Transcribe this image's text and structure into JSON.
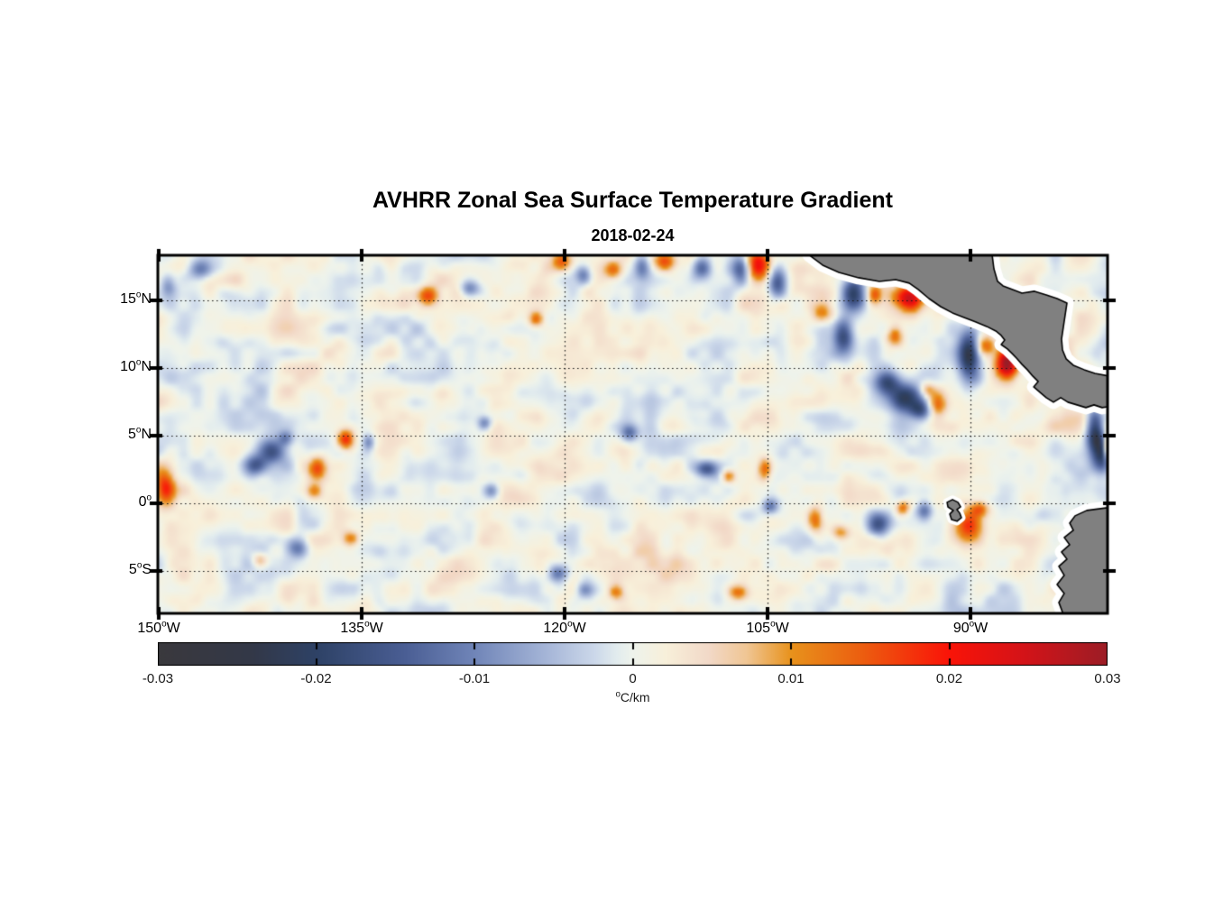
{
  "chart_data": {
    "type": "heatmap",
    "title": "AVHRR Zonal Sea Surface Temperature Gradient",
    "subtitle": "2018-02-24",
    "units": {
      "sup": "o",
      "main": "C/km"
    },
    "extent": {
      "lon_min": -150.07,
      "lon_max": -79.87,
      "lat_min": -8.14,
      "lat_max": 18.33
    },
    "lat_ticks": [
      {
        "value": "15",
        "sup": "o",
        "suffix": "N",
        "lat": 15
      },
      {
        "value": "10",
        "sup": "o",
        "suffix": "N",
        "lat": 10
      },
      {
        "value": "5",
        "sup": "o",
        "suffix": "N",
        "lat": 5
      },
      {
        "value": "0",
        "sup": "o",
        "suffix": "",
        "lat": 0
      },
      {
        "value": "5",
        "sup": "o",
        "suffix": "S",
        "lat": -5
      }
    ],
    "lon_ticks": [
      {
        "value": "150",
        "sup": "o",
        "suffix": "W",
        "lon": -150
      },
      {
        "value": "135",
        "sup": "o",
        "suffix": "W",
        "lon": -135
      },
      {
        "value": "120",
        "sup": "o",
        "suffix": "W",
        "lon": -120
      },
      {
        "value": "105",
        "sup": "o",
        "suffix": "W",
        "lon": -105
      },
      {
        "value": "90",
        "sup": "o",
        "suffix": "W",
        "lon": -90
      }
    ],
    "grid": {
      "style": "dotted",
      "lats": [
        15,
        10,
        5,
        0,
        -5
      ],
      "lons": [
        -135,
        -120,
        -105,
        -90
      ],
      "color": "#1a1a1a"
    },
    "colorbar": {
      "orientation": "horizontal",
      "min": -0.03,
      "max": 0.03,
      "tick_labels": [
        "-0.03",
        "-0.02",
        "-0.01",
        "0",
        "0.01",
        "0.02",
        "0.03"
      ],
      "tick_values": [
        -0.03,
        -0.02,
        -0.01,
        0,
        0.01,
        0.02,
        0.03
      ],
      "inner_tick_values": [
        -0.02,
        -0.01,
        0,
        0.01,
        0.02
      ],
      "stops": [
        {
          "p": 0.0,
          "c": "#3a393d"
        },
        {
          "p": 0.1,
          "c": "#333848"
        },
        {
          "p": 0.167,
          "c": "#2e4266"
        },
        {
          "p": 0.26,
          "c": "#4a5e94"
        },
        {
          "p": 0.333,
          "c": "#7085b8"
        },
        {
          "p": 0.41,
          "c": "#a6b6d8"
        },
        {
          "p": 0.46,
          "c": "#ccd8ea"
        },
        {
          "p": 0.483,
          "c": "#e2ecee"
        },
        {
          "p": 0.5,
          "c": "#eef3ec"
        },
        {
          "p": 0.535,
          "c": "#f8f0da"
        },
        {
          "p": 0.58,
          "c": "#f2d9c8"
        },
        {
          "p": 0.62,
          "c": "#f0c694"
        },
        {
          "p": 0.667,
          "c": "#e8921c"
        },
        {
          "p": 0.74,
          "c": "#ec5f10"
        },
        {
          "p": 0.833,
          "c": "#fa1408"
        },
        {
          "p": 0.91,
          "c": "#d51318"
        },
        {
          "p": 1.0,
          "c": "#9c1d26"
        }
      ]
    },
    "colors": {
      "land": "#808080",
      "coast": "#000000",
      "coast_buffer": "#ffffff",
      "frame": "#000000",
      "background": "#ffffff"
    },
    "land_polygons": [
      {
        "name": "central-america",
        "points": [
          [
            -101.93,
            18.35
          ],
          [
            -100.93,
            17.6
          ],
          [
            -99.73,
            17.07
          ],
          [
            -98.27,
            16.67
          ],
          [
            -96.73,
            16.4
          ],
          [
            -95.53,
            16.53
          ],
          [
            -94.53,
            16.27
          ],
          [
            -93.87,
            15.8
          ],
          [
            -93.07,
            15.13
          ],
          [
            -92.2,
            14.53
          ],
          [
            -91.33,
            14.07
          ],
          [
            -90.47,
            13.73
          ],
          [
            -89.6,
            13.4
          ],
          [
            -88.8,
            13.07
          ],
          [
            -88.13,
            12.73
          ],
          [
            -87.73,
            12.4
          ],
          [
            -87.47,
            12.07
          ],
          [
            -87.73,
            11.73
          ],
          [
            -87.27,
            11.4
          ],
          [
            -86.93,
            11.07
          ],
          [
            -86.6,
            10.73
          ],
          [
            -86.2,
            10.27
          ],
          [
            -85.8,
            9.87
          ],
          [
            -85.4,
            9.4
          ],
          [
            -85.0,
            9.0
          ],
          [
            -85.33,
            8.6
          ],
          [
            -84.87,
            8.2
          ],
          [
            -84.4,
            7.8
          ],
          [
            -83.87,
            7.47
          ],
          [
            -83.33,
            7.8
          ],
          [
            -82.8,
            7.47
          ],
          [
            -82.13,
            7.27
          ],
          [
            -81.47,
            7.07
          ],
          [
            -80.87,
            7.27
          ],
          [
            -80.27,
            7.07
          ],
          [
            -79.4,
            7.2
          ],
          [
            -79.4,
            9.33
          ],
          [
            -80.8,
            9.6
          ],
          [
            -81.6,
            9.87
          ],
          [
            -82.4,
            10.2
          ],
          [
            -82.93,
            10.67
          ],
          [
            -83.2,
            11.33
          ],
          [
            -83.27,
            12.13
          ],
          [
            -83.13,
            13.07
          ],
          [
            -82.87,
            14.8
          ],
          [
            -83.6,
            15.13
          ],
          [
            -84.4,
            15.4
          ],
          [
            -85.27,
            15.67
          ],
          [
            -86.2,
            15.53
          ],
          [
            -87.07,
            15.87
          ],
          [
            -87.6,
            16.07
          ],
          [
            -88.0,
            16.4
          ],
          [
            -88.27,
            17.33
          ],
          [
            -88.4,
            18.35
          ]
        ]
      },
      {
        "name": "south-america",
        "points": [
          [
            -79.4,
            -0.27
          ],
          [
            -81.4,
            -0.53
          ],
          [
            -82.27,
            -0.93
          ],
          [
            -82.67,
            -1.47
          ],
          [
            -82.4,
            -2.0
          ],
          [
            -83.07,
            -2.53
          ],
          [
            -82.67,
            -3.07
          ],
          [
            -83.27,
            -3.6
          ],
          [
            -82.87,
            -4.13
          ],
          [
            -83.47,
            -4.67
          ],
          [
            -83.07,
            -5.33
          ],
          [
            -83.6,
            -6.0
          ],
          [
            -83.07,
            -6.67
          ],
          [
            -83.47,
            -7.33
          ],
          [
            -83.07,
            -8.4
          ],
          [
            -79.4,
            -8.4
          ]
        ]
      },
      {
        "name": "galapagos-island",
        "small": true,
        "points": [
          [
            -91.73,
            0.07
          ],
          [
            -91.33,
            0.27
          ],
          [
            -90.93,
            0.07
          ],
          [
            -90.73,
            -0.27
          ],
          [
            -91.0,
            -0.47
          ],
          [
            -90.8,
            -0.73
          ],
          [
            -90.67,
            -1.07
          ],
          [
            -91.0,
            -1.33
          ],
          [
            -91.4,
            -1.2
          ],
          [
            -91.53,
            -0.8
          ],
          [
            -91.27,
            -0.53
          ],
          [
            -91.67,
            -0.27
          ]
        ]
      }
    ],
    "field": {
      "noise": {
        "seed": 11,
        "amplitude": 0.0042,
        "bias": 0.0008,
        "octaves": [
          [
            19,
            8,
            0.5
          ],
          [
            37,
            15,
            1.0
          ],
          [
            73,
            29,
            0.55
          ]
        ]
      },
      "blobs": [
        [
          -105.7,
          17.6,
          0.8,
          0.8,
          0.024
        ],
        [
          -106.9,
          17.3,
          0.5,
          0.8,
          -0.018
        ],
        [
          -104.3,
          16.3,
          0.5,
          0.9,
          -0.016
        ],
        [
          -109.9,
          17.4,
          0.5,
          0.6,
          -0.014
        ],
        [
          -112.6,
          17.9,
          0.6,
          0.5,
          0.016
        ],
        [
          -114.3,
          17.5,
          0.4,
          0.6,
          -0.012
        ],
        [
          -116.4,
          17.2,
          0.5,
          0.5,
          0.012
        ],
        [
          -118.6,
          16.9,
          0.4,
          0.5,
          -0.011
        ],
        [
          -120.2,
          17.9,
          0.5,
          0.5,
          0.013
        ],
        [
          -122.1,
          13.6,
          0.4,
          0.4,
          0.014
        ],
        [
          -127.0,
          15.9,
          0.5,
          0.4,
          -0.01
        ],
        [
          -130.1,
          15.3,
          0.5,
          0.5,
          0.014
        ],
        [
          -146.8,
          17.3,
          0.7,
          0.5,
          -0.013
        ],
        [
          -149.3,
          16.2,
          0.4,
          0.6,
          -0.01
        ],
        [
          -98.6,
          15.5,
          0.6,
          0.9,
          -0.02
        ],
        [
          -97.1,
          15.4,
          0.35,
          0.5,
          0.014
        ],
        [
          -94.6,
          15.2,
          0.8,
          0.7,
          0.026
        ],
        [
          -99.4,
          12.4,
          0.5,
          0.9,
          -0.017
        ],
        [
          -95.6,
          12.4,
          0.4,
          0.5,
          0.012
        ],
        [
          -90.1,
          11.0,
          0.55,
          1.3,
          -0.024
        ],
        [
          -88.9,
          11.6,
          0.5,
          0.5,
          0.014
        ],
        [
          -87.3,
          10.4,
          0.55,
          0.8,
          0.03
        ],
        [
          -96.1,
          8.9,
          0.7,
          0.6,
          -0.016
        ],
        [
          -94.8,
          7.8,
          0.8,
          0.7,
          -0.021
        ],
        [
          -93.7,
          6.9,
          0.6,
          0.5,
          -0.016
        ],
        [
          -92.5,
          7.3,
          0.5,
          0.7,
          0.014
        ],
        [
          -93.2,
          8.4,
          0.4,
          0.4,
          0.011
        ],
        [
          -80.8,
          5.3,
          0.45,
          1.1,
          -0.024
        ],
        [
          -80.2,
          3.6,
          0.5,
          0.9,
          -0.02
        ],
        [
          -79.8,
          4.1,
          0.25,
          0.7,
          0.026
        ],
        [
          -80.6,
          -6.6,
          0.9,
          0.8,
          -0.024
        ],
        [
          -81.8,
          -7.9,
          0.8,
          0.6,
          -0.018
        ],
        [
          -80.0,
          -2.3,
          0.25,
          0.35,
          0.022
        ],
        [
          -80.9,
          -3.5,
          0.4,
          0.5,
          0.016
        ],
        [
          -90.2,
          -1.6,
          0.7,
          0.8,
          0.018
        ],
        [
          -89.3,
          -0.4,
          0.5,
          0.4,
          0.012
        ],
        [
          -93.4,
          -0.6,
          0.4,
          0.5,
          -0.014
        ],
        [
          -95.0,
          -0.3,
          0.35,
          0.35,
          0.014
        ],
        [
          -96.7,
          -1.6,
          0.6,
          0.6,
          -0.016
        ],
        [
          -104.8,
          -0.2,
          0.4,
          0.4,
          -0.014
        ],
        [
          -101.5,
          -1.2,
          0.4,
          0.7,
          0.013
        ],
        [
          -99.6,
          -2.2,
          0.5,
          0.4,
          0.01
        ],
        [
          -141.7,
          3.9,
          0.8,
          0.7,
          -0.019
        ],
        [
          -143.0,
          2.8,
          0.6,
          0.5,
          -0.015
        ],
        [
          -140.6,
          4.8,
          0.4,
          0.4,
          -0.011
        ],
        [
          -136.2,
          4.7,
          0.45,
          0.5,
          0.02
        ],
        [
          -138.3,
          2.6,
          0.45,
          0.6,
          0.015
        ],
        [
          -138.5,
          0.9,
          0.4,
          0.4,
          0.011
        ],
        [
          -134.5,
          4.5,
          0.3,
          0.4,
          -0.01
        ],
        [
          -149.5,
          1.1,
          0.5,
          0.9,
          0.016
        ],
        [
          -125.4,
          0.9,
          0.4,
          0.4,
          -0.012
        ],
        [
          -125.9,
          5.9,
          0.35,
          0.35,
          -0.011
        ],
        [
          -109.5,
          2.5,
          0.55,
          0.4,
          -0.014
        ],
        [
          -107.9,
          2.0,
          0.35,
          0.35,
          0.011
        ],
        [
          -105.2,
          2.5,
          0.35,
          0.6,
          0.013
        ],
        [
          -115.2,
          5.2,
          0.45,
          0.4,
          -0.011
        ],
        [
          -139.8,
          -3.3,
          0.6,
          0.5,
          -0.012
        ],
        [
          -135.8,
          -2.6,
          0.4,
          0.4,
          0.01
        ],
        [
          -142.5,
          -4.2,
          0.4,
          0.4,
          0.01
        ],
        [
          -120.5,
          -5.2,
          0.5,
          0.45,
          -0.013
        ],
        [
          -118.5,
          -6.4,
          0.45,
          0.4,
          -0.01
        ],
        [
          -116.2,
          -6.6,
          0.4,
          0.4,
          0.01
        ],
        [
          -107.2,
          -6.6,
          0.5,
          0.4,
          0.012
        ],
        [
          -101.0,
          14.0,
          0.5,
          0.5,
          0.01
        ]
      ]
    }
  }
}
